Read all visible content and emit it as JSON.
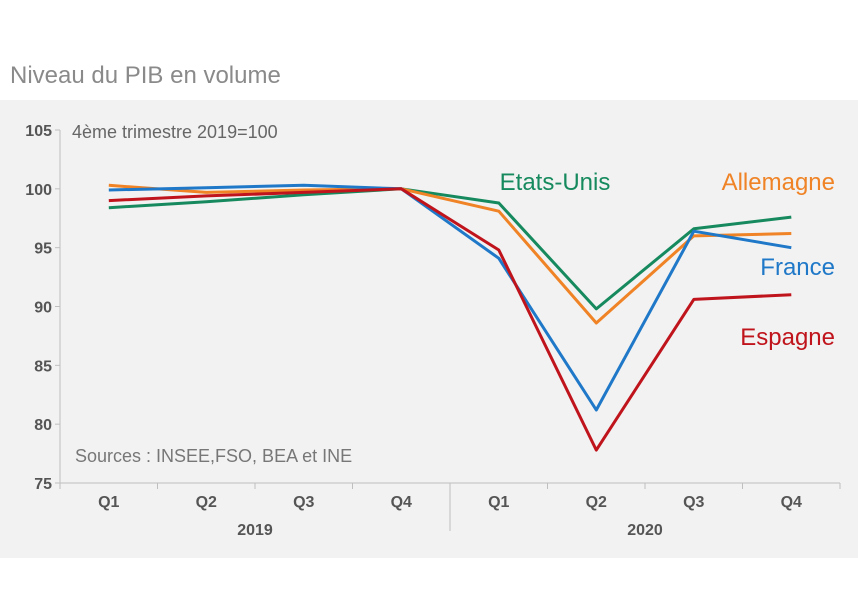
{
  "page": {
    "title": "Niveau du PIB en volume"
  },
  "chart_data": {
    "type": "line",
    "subtitle": "4ème trimestre 2019=100",
    "source": "Sources : INSEE,FSO, BEA et INE",
    "categories": [
      "Q1",
      "Q2",
      "Q3",
      "Q4",
      "Q1",
      "Q2",
      "Q3",
      "Q4"
    ],
    "years": [
      {
        "label": "2019",
        "start": 0,
        "end": 3
      },
      {
        "label": "2020",
        "start": 4,
        "end": 7
      }
    ],
    "ylim": [
      75,
      105
    ],
    "yticks": [
      75,
      80,
      85,
      90,
      95,
      100,
      105
    ],
    "grid": false,
    "legend": "inline-right",
    "series": [
      {
        "name": "Etats-Unis",
        "color": "#168a5e",
        "values": [
          98.4,
          98.9,
          99.5,
          100.0,
          98.8,
          89.8,
          96.6,
          97.6
        ]
      },
      {
        "name": "Allemagne",
        "color": "#ef8325",
        "values": [
          100.3,
          99.7,
          99.9,
          100.0,
          98.1,
          88.6,
          96.0,
          96.2
        ]
      },
      {
        "name": "France",
        "color": "#1f78c8",
        "values": [
          99.9,
          100.1,
          100.3,
          100.0,
          94.1,
          81.2,
          96.4,
          95.0
        ]
      },
      {
        "name": "Espagne",
        "color": "#c0141c",
        "values": [
          99.0,
          99.4,
          99.7,
          100.0,
          94.8,
          77.8,
          90.6,
          91.0
        ]
      }
    ]
  }
}
